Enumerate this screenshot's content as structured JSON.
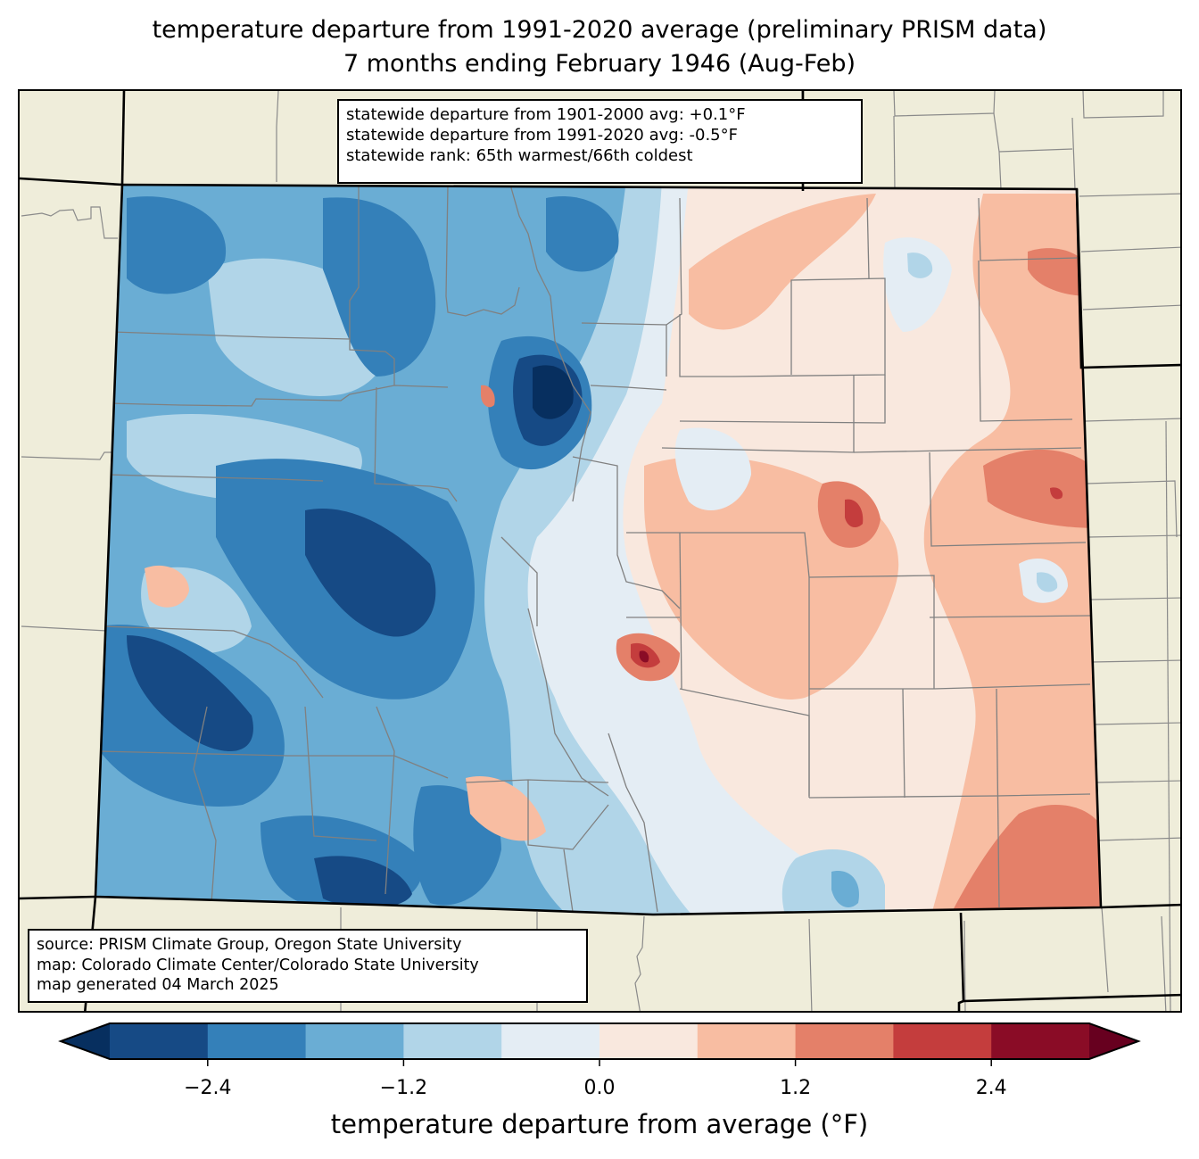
{
  "header": {
    "title_line1": "temperature departure from 1991-2020 average (preliminary PRISM data)",
    "title_line2": "7 months ending February 1946 (Aug-Feb)"
  },
  "stats": {
    "line1": "statewide departure from 1901-2000 avg: +0.1°F",
    "line2": "statewide departure from 1991-2020 avg: -0.5°F",
    "line3": "statewide rank: 65th warmest/66th coldest"
  },
  "credits": {
    "line1": "source: PRISM Climate Group, Oregon State University",
    "line2": "map: Colorado Climate Center/Colorado State University",
    "line3": "map generated 04 March 2025"
  },
  "colors": {
    "land_background": "#efedda",
    "state_border": "#000000",
    "county_border": "#808080"
  },
  "chart_data": {
    "type": "heatmap",
    "title": "temperature departure from 1991-2020 average (preliminary PRISM data)",
    "subtitle": "7 months ending February 1946 (Aug-Feb)",
    "region": "Colorado",
    "colorbar": {
      "label": "temperature departure from average (°F)",
      "extend": "both",
      "boundaries": [
        -3.0,
        -2.4,
        -1.8,
        -1.2,
        -0.6,
        0.0,
        0.6,
        1.2,
        1.8,
        2.4,
        3.0
      ],
      "colors": [
        "#164a85",
        "#3480b9",
        "#6aadd4",
        "#b1d5e8",
        "#e4edf4",
        "#f9e8de",
        "#f8bda2",
        "#e48069",
        "#c43d3d",
        "#8a0c26"
      ],
      "under_color": "#072f5f",
      "over_color": "#67001f",
      "ticks": [
        -2.4,
        -1.2,
        0.0,
        1.2,
        2.4
      ],
      "tick_labels": [
        "−2.4",
        "−1.2",
        "0.0",
        "1.2",
        "2.4"
      ]
    },
    "pattern": {
      "west_mountains": "mostly -0.6 to -3.0 (cool)",
      "eastern_plains": "mostly 0.0 to +1.8 (warm)",
      "statewide_departure_1991_2020": -0.5,
      "statewide_departure_1901_2000": 0.1
    }
  }
}
